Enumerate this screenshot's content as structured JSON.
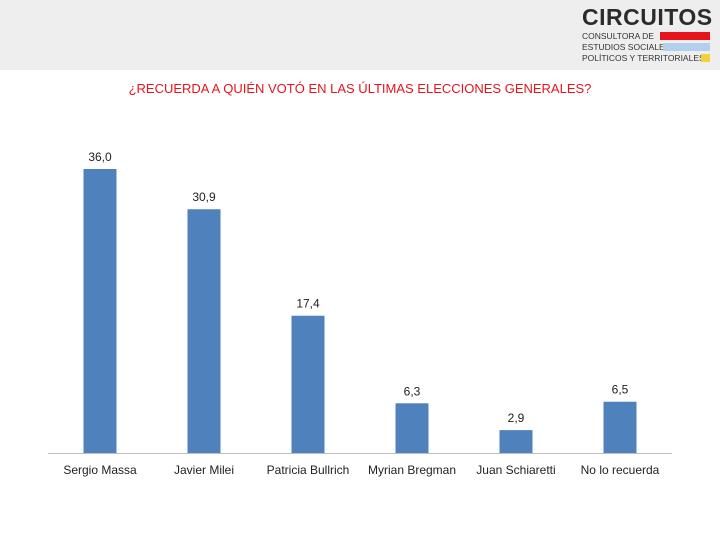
{
  "header": {
    "logo_name": "CIRCUITOS",
    "logo_lines": [
      "CONSULTORA DE",
      "ESTUDIOS SOCIALES,",
      "POLÍTICOS Y TERRITORIALES"
    ],
    "logo_colors": [
      "#e8141c",
      "#b3cfee",
      "#f4d03a"
    ],
    "band_color": "#eeeeee"
  },
  "chart_data": {
    "type": "bar",
    "title": "¿RECUERDA A QUIÉN VOTÓ EN LAS ÚLTIMAS ELECCIONES GENERALES?",
    "categories": [
      "Sergio Massa",
      "Javier Milei",
      "Patricia Bullrich",
      "Myrian Bregman",
      "Juan Schiaretti",
      "No lo recuerda"
    ],
    "values": [
      36.0,
      30.9,
      17.4,
      6.3,
      2.9,
      6.5
    ],
    "value_labels": [
      "36,0",
      "30,9",
      "17,4",
      "6,3",
      "2,9",
      "6,5"
    ],
    "bar_color": "#4f81bd",
    "title_color": "#e8141c",
    "ylim": [
      0,
      36.0
    ],
    "grid": false,
    "legend": "none"
  }
}
